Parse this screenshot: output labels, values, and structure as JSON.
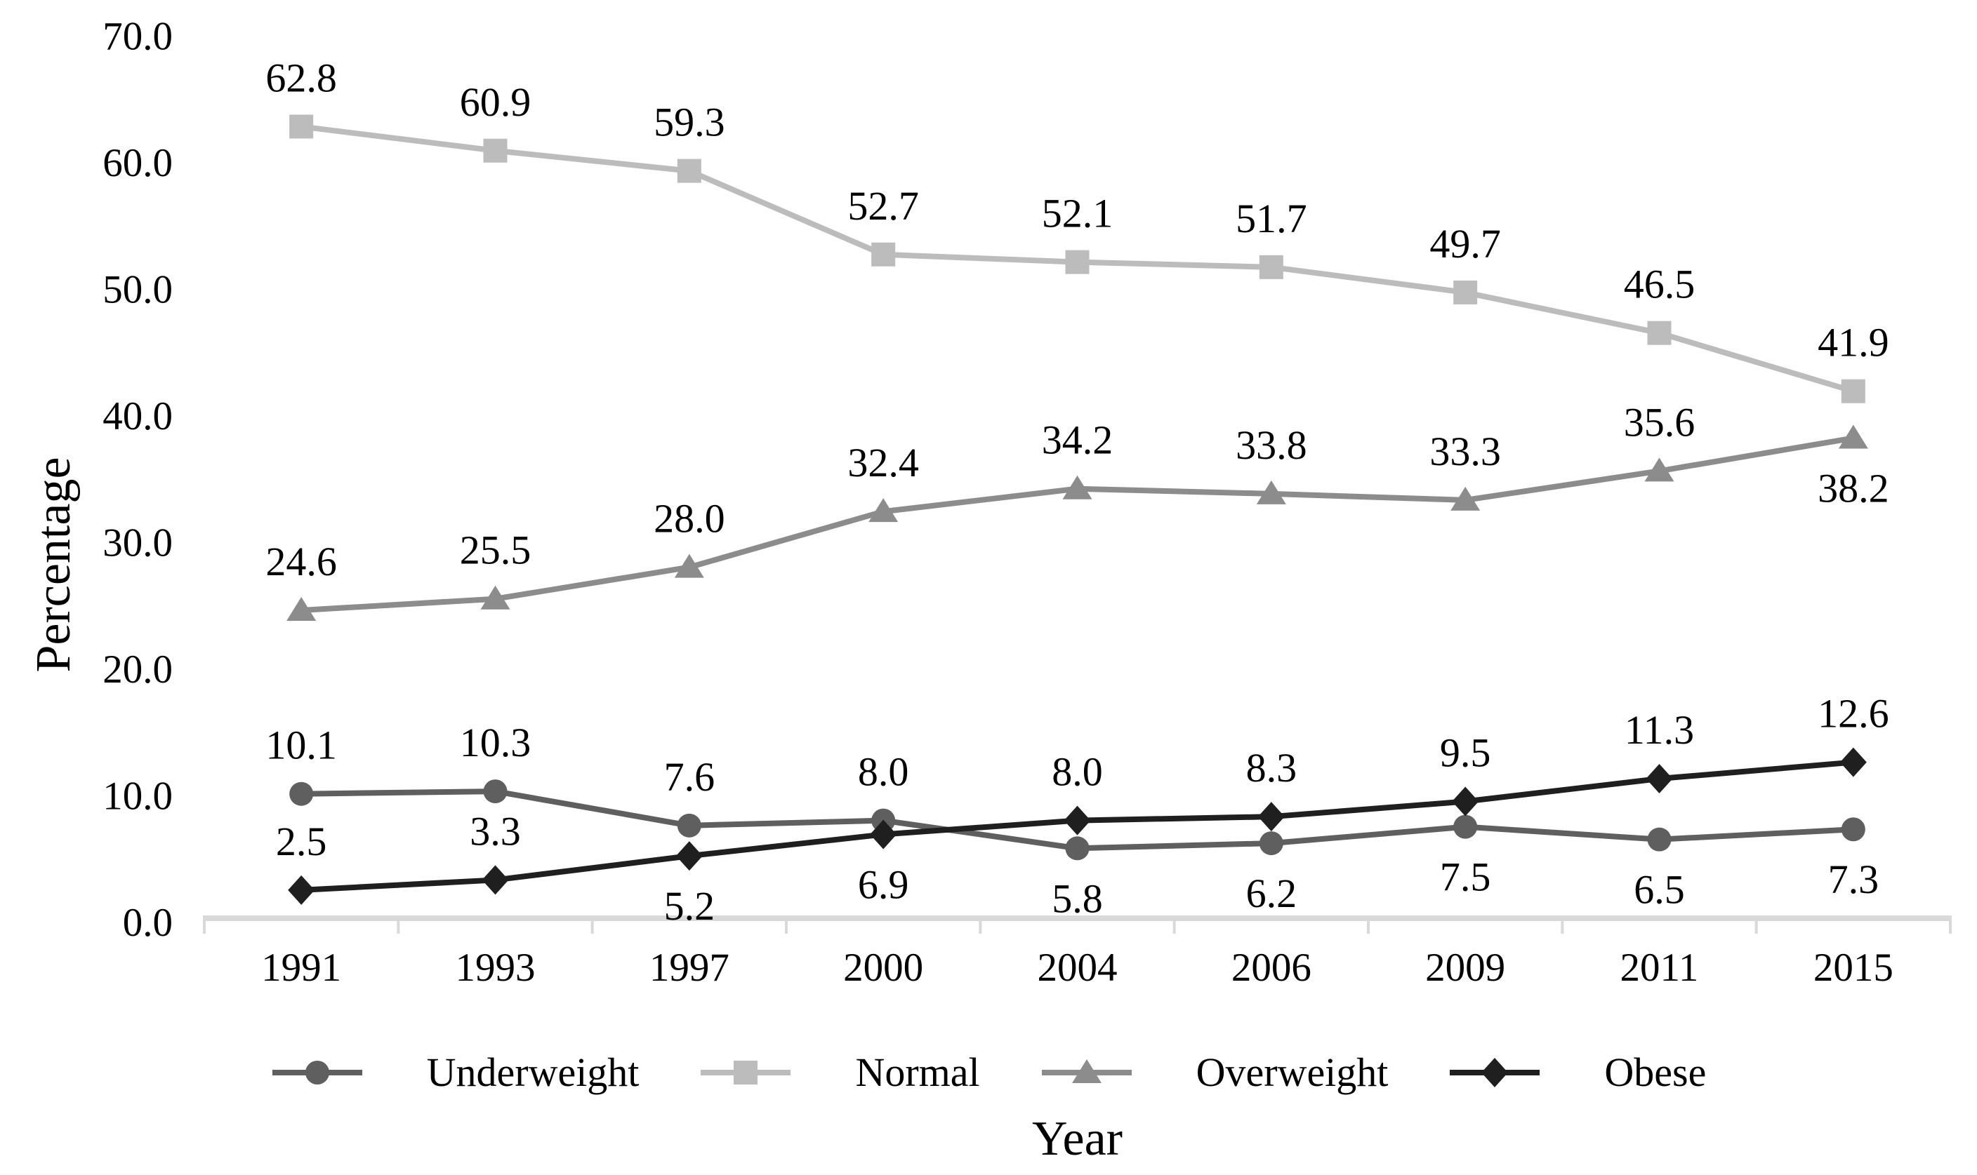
{
  "chart_data": {
    "type": "line",
    "title": "",
    "xlabel": "Year",
    "ylabel": "Percentage",
    "categories": [
      "1991",
      "1993",
      "1997",
      "2000",
      "2004",
      "2006",
      "2009",
      "2011",
      "2015"
    ],
    "y_ticks": [
      "0.0",
      "10.0",
      "20.0",
      "30.0",
      "40.0",
      "50.0",
      "60.0",
      "70.0"
    ],
    "ylim": [
      0,
      70
    ],
    "grid": false,
    "legend_position": "bottom",
    "axis_color": "#d9d9d9",
    "text_color": "#000000",
    "series": [
      {
        "name": "Underweight",
        "marker": "circle",
        "color": "#5f5f5f",
        "values": [
          10.1,
          10.3,
          7.6,
          8.0,
          5.8,
          6.2,
          7.5,
          6.5,
          7.3
        ],
        "label_side": [
          "above",
          "above",
          "above",
          "above",
          "below",
          "below",
          "below",
          "below",
          "below"
        ]
      },
      {
        "name": "Normal",
        "marker": "square",
        "color": "#bcbcbc",
        "values": [
          62.8,
          60.9,
          59.3,
          52.7,
          52.1,
          51.7,
          49.7,
          46.5,
          41.9
        ],
        "label_side": [
          "above",
          "above",
          "above",
          "above",
          "above",
          "above",
          "above",
          "above",
          "above"
        ]
      },
      {
        "name": "Overweight",
        "marker": "triangle",
        "color": "#8c8c8c",
        "values": [
          24.6,
          25.5,
          28.0,
          32.4,
          34.2,
          33.8,
          33.3,
          35.6,
          38.2
        ],
        "label_side": [
          "above",
          "above",
          "above",
          "above",
          "above",
          "above",
          "above",
          "above",
          "below"
        ]
      },
      {
        "name": "Obese",
        "marker": "diamond",
        "color": "#1f1f1f",
        "values": [
          2.5,
          3.3,
          5.2,
          6.9,
          8.0,
          8.3,
          9.5,
          11.3,
          12.6
        ],
        "label_side": [
          "above",
          "above",
          "below",
          "below",
          "above",
          "above",
          "above",
          "above",
          "above"
        ]
      }
    ]
  }
}
